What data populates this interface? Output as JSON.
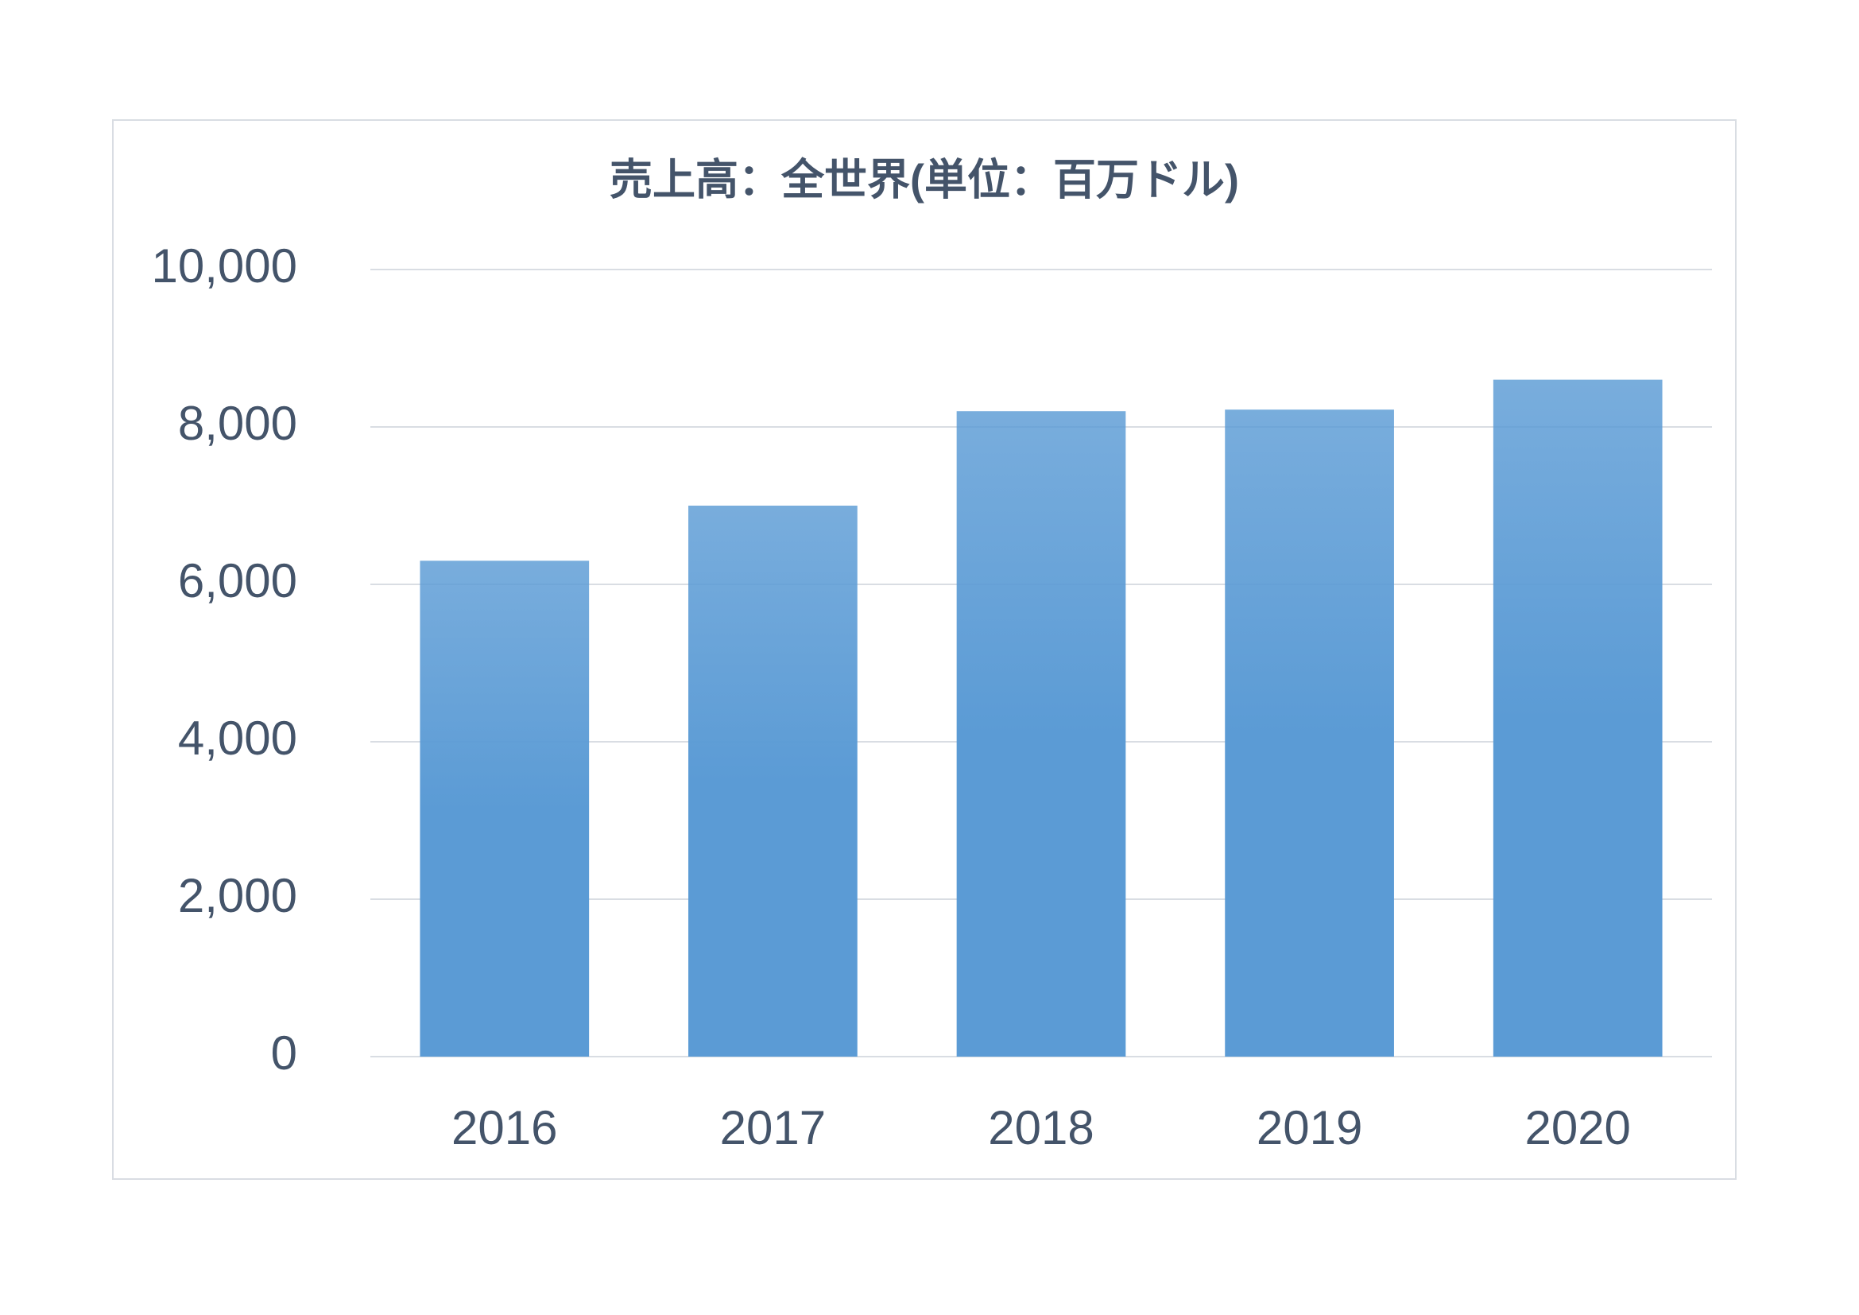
{
  "chart_data": {
    "type": "bar",
    "title": "売上高：全世界(単位：百万ドル)",
    "categories": [
      "2016",
      "2017",
      "2018",
      "2019",
      "2020"
    ],
    "values": [
      6300,
      7000,
      8200,
      8220,
      8600
    ],
    "color": "#5b9bd5",
    "ylim": [
      0,
      10000
    ],
    "yticks": [
      0,
      {
        "value": 2000,
        "label": "2,000"
      },
      {
        "value": 4000,
        "label": "4,000"
      },
      {
        "value": 6000,
        "label": "6,000"
      },
      {
        "value": 8000,
        "label": "8,000"
      },
      {
        "value": 10000,
        "label": "10,000"
      }
    ],
    "grid": true
  }
}
